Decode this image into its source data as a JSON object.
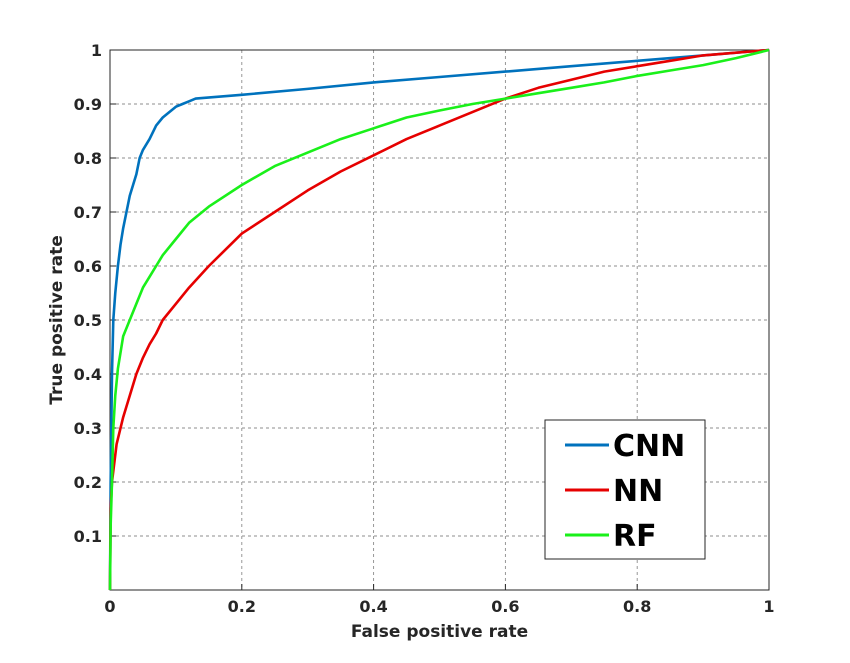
{
  "chart_data": {
    "type": "line",
    "xlabel": "False positive rate",
    "ylabel": "True positive rate",
    "xlim": [
      0,
      1
    ],
    "ylim": [
      0,
      1
    ],
    "grid": true,
    "legend_position": "bottom-right",
    "x_ticks": [
      "0",
      "0.2",
      "0.4",
      "0.6",
      "0.8",
      "1"
    ],
    "y_ticks": [
      "0.1",
      "0.2",
      "0.3",
      "0.4",
      "0.5",
      "0.6",
      "0.7",
      "0.8",
      "0.9",
      "1"
    ],
    "series": [
      {
        "name": "CNN",
        "color": "#0072BD",
        "points": [
          [
            0,
            0
          ],
          [
            0.001,
            0.2
          ],
          [
            0.003,
            0.4
          ],
          [
            0.005,
            0.5
          ],
          [
            0.008,
            0.55
          ],
          [
            0.012,
            0.6
          ],
          [
            0.016,
            0.64
          ],
          [
            0.02,
            0.67
          ],
          [
            0.025,
            0.7
          ],
          [
            0.03,
            0.73
          ],
          [
            0.035,
            0.75
          ],
          [
            0.04,
            0.77
          ],
          [
            0.045,
            0.8
          ],
          [
            0.05,
            0.815
          ],
          [
            0.06,
            0.835
          ],
          [
            0.07,
            0.86
          ],
          [
            0.08,
            0.875
          ],
          [
            0.09,
            0.885
          ],
          [
            0.1,
            0.895
          ],
          [
            0.11,
            0.9
          ],
          [
            0.12,
            0.905
          ],
          [
            0.13,
            0.91
          ],
          [
            0.2,
            0.917
          ],
          [
            0.3,
            0.928
          ],
          [
            0.4,
            0.94
          ],
          [
            0.5,
            0.95
          ],
          [
            0.6,
            0.96
          ],
          [
            0.7,
            0.97
          ],
          [
            0.8,
            0.98
          ],
          [
            0.9,
            0.99
          ],
          [
            1.0,
            1.0
          ]
        ]
      },
      {
        "name": "NN",
        "color": "#E60000",
        "points": [
          [
            0,
            0
          ],
          [
            0.001,
            0.15
          ],
          [
            0.003,
            0.2
          ],
          [
            0.006,
            0.23
          ],
          [
            0.01,
            0.27
          ],
          [
            0.02,
            0.32
          ],
          [
            0.03,
            0.36
          ],
          [
            0.04,
            0.4
          ],
          [
            0.05,
            0.43
          ],
          [
            0.06,
            0.455
          ],
          [
            0.07,
            0.475
          ],
          [
            0.08,
            0.5
          ],
          [
            0.1,
            0.53
          ],
          [
            0.12,
            0.56
          ],
          [
            0.15,
            0.6
          ],
          [
            0.2,
            0.66
          ],
          [
            0.25,
            0.7
          ],
          [
            0.3,
            0.74
          ],
          [
            0.35,
            0.775
          ],
          [
            0.4,
            0.805
          ],
          [
            0.45,
            0.835
          ],
          [
            0.5,
            0.86
          ],
          [
            0.55,
            0.885
          ],
          [
            0.6,
            0.91
          ],
          [
            0.65,
            0.93
          ],
          [
            0.7,
            0.945
          ],
          [
            0.75,
            0.96
          ],
          [
            0.8,
            0.97
          ],
          [
            0.85,
            0.98
          ],
          [
            0.9,
            0.99
          ],
          [
            0.95,
            0.995
          ],
          [
            1.0,
            1.0
          ]
        ]
      },
      {
        "name": "RF",
        "color": "#1AF01A",
        "points": [
          [
            0,
            0
          ],
          [
            0.001,
            0.12
          ],
          [
            0.003,
            0.2
          ],
          [
            0.005,
            0.3
          ],
          [
            0.008,
            0.36
          ],
          [
            0.012,
            0.41
          ],
          [
            0.016,
            0.44
          ],
          [
            0.02,
            0.47
          ],
          [
            0.03,
            0.5
          ],
          [
            0.04,
            0.53
          ],
          [
            0.05,
            0.56
          ],
          [
            0.06,
            0.58
          ],
          [
            0.07,
            0.6
          ],
          [
            0.08,
            0.62
          ],
          [
            0.1,
            0.65
          ],
          [
            0.12,
            0.68
          ],
          [
            0.15,
            0.71
          ],
          [
            0.2,
            0.75
          ],
          [
            0.25,
            0.785
          ],
          [
            0.3,
            0.81
          ],
          [
            0.35,
            0.835
          ],
          [
            0.4,
            0.855
          ],
          [
            0.45,
            0.875
          ],
          [
            0.5,
            0.888
          ],
          [
            0.55,
            0.9
          ],
          [
            0.6,
            0.91
          ],
          [
            0.65,
            0.92
          ],
          [
            0.7,
            0.93
          ],
          [
            0.75,
            0.94
          ],
          [
            0.8,
            0.952
          ],
          [
            0.85,
            0.962
          ],
          [
            0.9,
            0.972
          ],
          [
            0.95,
            0.985
          ],
          [
            1.0,
            1.0
          ]
        ]
      }
    ]
  }
}
